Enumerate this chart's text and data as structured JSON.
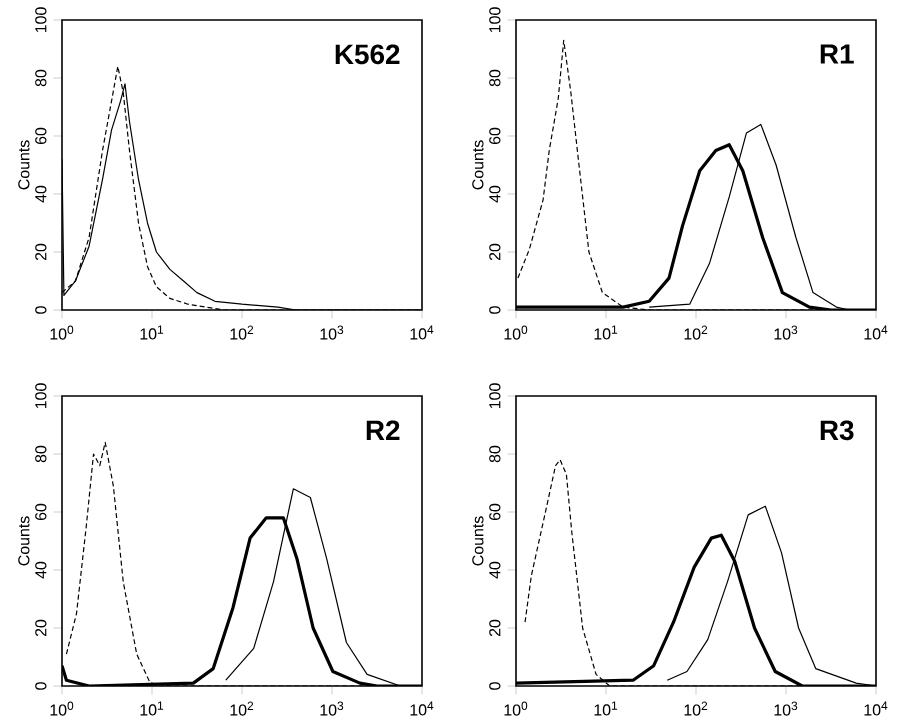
{
  "chart_data": [
    {
      "type": "line",
      "title": "K562",
      "ylabel": "Counts",
      "log": "x",
      "xlim": [
        1,
        10000
      ],
      "ylim": [
        0,
        100
      ],
      "xticks": [
        {
          "value": 1,
          "label": "10$^{0}$"
        },
        {
          "value": 10,
          "label": "10$^{1}$"
        },
        {
          "value": 100,
          "label": "10$^{2}$"
        },
        {
          "value": 1000,
          "label": "10$^{3}$"
        },
        {
          "value": 10000,
          "label": "10$^{4}$"
        }
      ],
      "yticks": [
        0,
        20,
        40,
        60,
        80,
        100
      ],
      "series": [
        {
          "color": "#000000",
          "line_style": "dashed",
          "x": [
            1,
            1.41,
            2.0,
            2.82,
            3.55,
            4.17,
            4.79,
            5.62,
            7.08,
            8.91,
            11.2,
            15.8,
            25.1,
            39.8,
            63.1,
            316,
            10000
          ],
          "values": [
            6,
            10,
            25,
            55,
            72,
            84,
            75,
            55,
            30,
            15,
            8,
            4,
            2,
            1,
            0,
            0,
            0
          ]
        },
        {
          "color": "#000000",
          "line_style": "solid",
          "x": [
            1,
            1.05,
            1.41,
            2.0,
            2.82,
            3.55,
            4.47,
            5.01,
            5.62,
            7.08,
            8.91,
            11.2,
            15.8,
            22.4,
            31.6,
            50.1,
            100,
            251,
            398,
            10000
          ],
          "values": [
            52,
            5,
            10,
            22,
            45,
            62,
            72,
            78,
            65,
            45,
            30,
            20,
            14,
            10,
            6,
            3,
            2,
            1,
            0,
            0
          ]
        }
      ]
    },
    {
      "type": "line",
      "title": "R1",
      "ylabel": "Counts",
      "log": "x",
      "xlim": [
        1,
        10000
      ],
      "ylim": [
        0,
        100
      ],
      "xticks": [
        {
          "value": 1,
          "label": "10$^{0}$"
        },
        {
          "value": 10,
          "label": "10$^{1}$"
        },
        {
          "value": 100,
          "label": "10$^{2}$"
        },
        {
          "value": 1000,
          "label": "10$^{3}$"
        },
        {
          "value": 10000,
          "label": "10$^{4}$"
        }
      ],
      "yticks": [
        0,
        20,
        40,
        60,
        80,
        100
      ],
      "series": [
        {
          "color": "#000000",
          "line_style": "dashed",
          "x": [
            1.05,
            1.41,
            2.0,
            2.34,
            2.95,
            3.39,
            4.07,
            5.01,
            6.46,
            9.12,
            15.5,
            30.2,
            10000
          ],
          "values": [
            11,
            21,
            38,
            55,
            73,
            93,
            75,
            50,
            20,
            6,
            1,
            0,
            0
          ]
        },
        {
          "color": "#000000",
          "line_style": "solid",
          "x": [
            1,
            15.5,
            30.2,
            50.1,
            70.8,
            110,
            166,
            234,
            331,
            550,
            912,
            1820,
            3162,
            10000
          ],
          "values": [
            1,
            1,
            3,
            11,
            29,
            48,
            55,
            57,
            48,
            25,
            6,
            1,
            0,
            0
          ]
        },
        {
          "color": "#000000",
          "line_style": "solid",
          "x": [
            30.2,
            85.1,
            141,
            234,
            363,
            525,
            776,
            1288,
            1995,
            3631,
            5012,
            10000
          ],
          "values": [
            1,
            2,
            16,
            39,
            61,
            64,
            50,
            25,
            6,
            1,
            0,
            0
          ]
        }
      ]
    },
    {
      "type": "line",
      "title": "R2",
      "ylabel": "Counts",
      "log": "x",
      "xlim": [
        1,
        10000
      ],
      "ylim": [
        0,
        100
      ],
      "xticks": [
        {
          "value": 1,
          "label": "10$^{0}$"
        },
        {
          "value": 10,
          "label": "10$^{1}$"
        },
        {
          "value": 100,
          "label": "10$^{2}$"
        },
        {
          "value": 1000,
          "label": "10$^{3}$"
        },
        {
          "value": 10000,
          "label": "10$^{4}$"
        }
      ],
      "yticks": [
        0,
        20,
        40,
        60,
        80,
        100
      ],
      "series": [
        {
          "color": "#000000",
          "line_style": "dashed",
          "x": [
            1.12,
            1.45,
            1.86,
            2.24,
            2.63,
            3.02,
            3.72,
            4.79,
            6.76,
            9.55,
            15.8,
            10000
          ],
          "values": [
            11,
            25,
            55,
            80,
            76,
            84,
            69,
            36,
            11,
            1,
            0,
            0
          ]
        },
        {
          "color": "#000000",
          "line_style": "solid",
          "x": [
            1,
            1.12,
            2.0,
            28.8,
            47.9,
            79.4,
            123,
            186,
            288,
            407,
            617,
            1023,
            2042,
            3162,
            10000
          ],
          "values": [
            7,
            2,
            0,
            1,
            6,
            27,
            51,
            58,
            58,
            44,
            20,
            5,
            1,
            0,
            0
          ]
        },
        {
          "color": "#000000",
          "line_style": "solid",
          "x": [
            66.1,
            135,
            224,
            372,
            575,
            871,
            1445,
            2455,
            5754,
            10000
          ],
          "values": [
            2,
            13,
            36,
            68,
            65,
            44,
            15,
            4,
            0,
            0
          ]
        }
      ]
    },
    {
      "type": "line",
      "title": "R3",
      "ylabel": "Counts",
      "log": "x",
      "xlim": [
        1,
        10000
      ],
      "ylim": [
        0,
        100
      ],
      "xticks": [
        {
          "value": 1,
          "label": "10$^{0}$"
        },
        {
          "value": 10,
          "label": "10$^{1}$"
        },
        {
          "value": 100,
          "label": "10$^{2}$"
        },
        {
          "value": 1000,
          "label": "10$^{3}$"
        },
        {
          "value": 10000,
          "label": "10$^{4}$"
        }
      ],
      "yticks": [
        0,
        20,
        40,
        60,
        80,
        100
      ],
      "series": [
        {
          "color": "#000000",
          "line_style": "dashed",
          "x": [
            1.26,
            1.48,
            2.09,
            2.75,
            3.09,
            3.63,
            4.17,
            5.5,
            7.76,
            11,
            10000
          ],
          "values": [
            22,
            38,
            59,
            76,
            78,
            73,
            53,
            20,
            4,
            0,
            0
          ]
        },
        {
          "color": "#000000",
          "line_style": "solid",
          "x": [
            1,
            20,
            33.9,
            56.2,
            95.5,
            148,
            191,
            269,
            447,
            759,
            1514,
            10000
          ],
          "values": [
            1,
            2,
            7,
            22,
            41,
            51,
            52,
            43,
            20,
            5,
            0,
            0
          ]
        },
        {
          "color": "#000000",
          "line_style": "solid",
          "x": [
            47.9,
            79.4,
            135,
            224,
            380,
            589,
            891,
            1380,
            2138,
            6026,
            10000
          ],
          "values": [
            2,
            5,
            16,
            36,
            59,
            62,
            46,
            20,
            6,
            1,
            0
          ]
        }
      ]
    }
  ]
}
